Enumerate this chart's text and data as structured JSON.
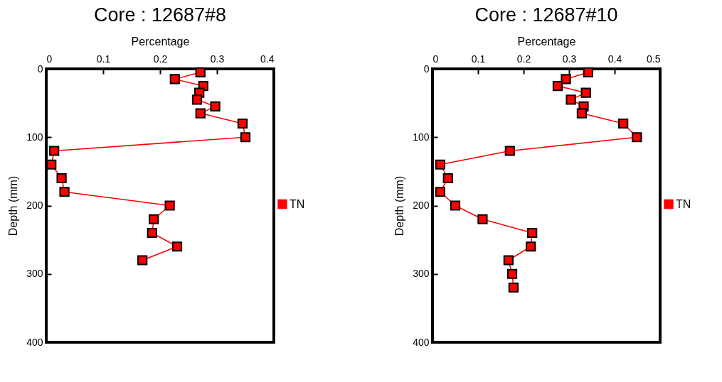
{
  "chart_data": [
    {
      "type": "line",
      "title": "Core : 12687#8",
      "xlabel": "Percentage",
      "ylabel": "Depth (mm)",
      "xlim": [
        0,
        0.4
      ],
      "xticks": [
        0,
        0.1,
        0.2,
        0.3,
        0.4
      ],
      "ylim": [
        400,
        0
      ],
      "yticks": [
        0,
        100,
        200,
        300,
        400
      ],
      "legend": "right",
      "marker": "square",
      "line_style": "solid",
      "grid": false,
      "series": [
        {
          "name": "TN",
          "color": "#ff0000",
          "x": [
            0.271,
            0.226,
            0.276,
            0.269,
            0.265,
            0.297,
            0.271,
            0.345,
            0.35,
            0.014,
            0.009,
            0.027,
            0.032,
            0.217,
            0.189,
            0.186,
            0.23,
            0.169
          ],
          "values": [
            5,
            15,
            25,
            35,
            45,
            55,
            65,
            80,
            100,
            120,
            140,
            160,
            180,
            200,
            220,
            240,
            260,
            280
          ]
        }
      ]
    },
    {
      "type": "line",
      "title": "Core : 12687#10",
      "xlabel": "Percentage",
      "ylabel": "Depth (mm)",
      "xlim": [
        0,
        0.5
      ],
      "xticks": [
        0,
        0.1,
        0.2,
        0.3,
        0.4,
        0.5
      ],
      "ylim": [
        400,
        0
      ],
      "yticks": [
        0,
        100,
        200,
        300,
        400
      ],
      "legend": "right",
      "marker": "square",
      "line_style": "solid",
      "grid": false,
      "series": [
        {
          "name": "TN",
          "color": "#ff0000",
          "x": [
            0.342,
            0.293,
            0.275,
            0.337,
            0.304,
            0.332,
            0.328,
            0.419,
            0.449,
            0.17,
            0.017,
            0.034,
            0.017,
            0.05,
            0.11,
            0.219,
            0.216,
            0.167,
            0.175,
            0.178
          ],
          "values": [
            5,
            15,
            25,
            35,
            45,
            55,
            65,
            80,
            100,
            120,
            140,
            160,
            180,
            200,
            220,
            240,
            260,
            280,
            300,
            320
          ]
        }
      ]
    }
  ]
}
